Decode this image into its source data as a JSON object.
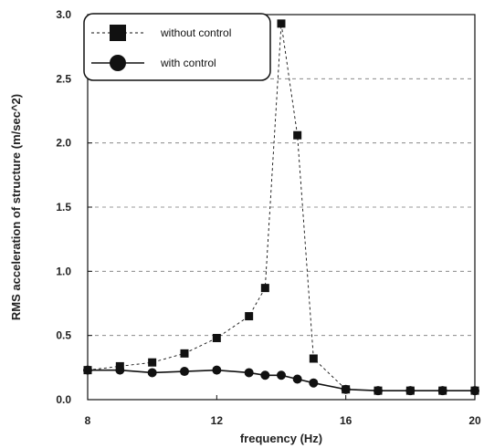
{
  "chart_data": {
    "type": "line",
    "xlabel": "frequency (Hz)",
    "ylabel": "RMS acceleration of structure (m/sec^2)",
    "xlim": [
      8,
      20
    ],
    "ylim": [
      0,
      3.0
    ],
    "x_ticks": [
      "8",
      "12",
      "16",
      "20"
    ],
    "y_ticks": [
      "0.0",
      "0.5",
      "1.0",
      "1.5",
      "2.0",
      "2.5",
      "3.0"
    ],
    "grid": "horizontal dashed",
    "legend_position": "top-left",
    "series": [
      {
        "name": "without control",
        "marker": "square",
        "line": "dashed",
        "color": "#111111",
        "x": [
          8,
          9,
          10,
          11,
          12,
          13,
          13.5,
          14,
          14.5,
          15,
          16,
          17,
          18,
          19,
          20
        ],
        "y": [
          0.23,
          0.26,
          0.29,
          0.36,
          0.48,
          0.65,
          0.87,
          2.93,
          2.06,
          0.32,
          0.08,
          0.07,
          0.07,
          0.07,
          0.07
        ]
      },
      {
        "name": "with control",
        "marker": "circle",
        "line": "solid",
        "color": "#111111",
        "x": [
          8,
          9,
          10,
          11,
          12,
          13,
          13.5,
          14,
          14.5,
          15,
          16,
          17,
          18,
          19,
          20
        ],
        "y": [
          0.23,
          0.23,
          0.21,
          0.22,
          0.23,
          0.21,
          0.19,
          0.19,
          0.16,
          0.13,
          0.08,
          0.07,
          0.07,
          0.07,
          0.07
        ]
      }
    ]
  }
}
